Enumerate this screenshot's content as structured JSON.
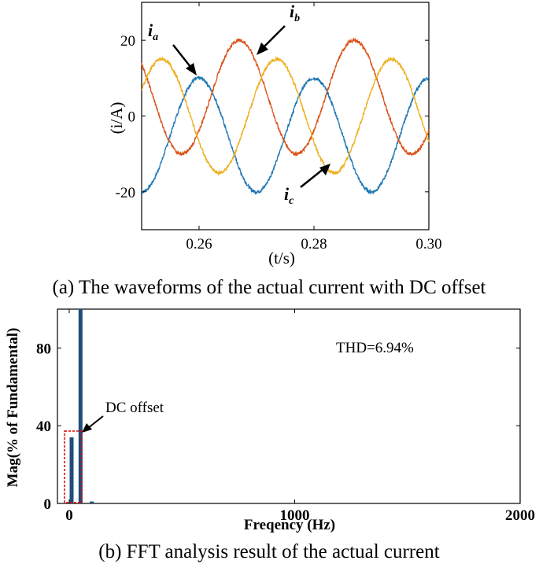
{
  "chart_data": [
    {
      "type": "line",
      "title": "",
      "caption": "(a) The waveforms of the actual current with DC offset",
      "xlabel": "(t/s)",
      "ylabel": "(i/A)",
      "xlim": [
        0.25,
        0.3
      ],
      "ylim": [
        -30,
        30
      ],
      "xticks": [
        0.26,
        0.28,
        0.3
      ],
      "xtick_labels": [
        "0.26",
        "0.28",
        "0.30"
      ],
      "yticks": [
        -20,
        0,
        20
      ],
      "ytick_labels": [
        "-20",
        "0",
        "20"
      ],
      "frequency_hz": 50,
      "series": [
        {
          "name": "ia",
          "amplitude": 15,
          "dc_offset": -5,
          "peak_time": 0.26,
          "color": "#1f77b4"
        },
        {
          "name": "ib",
          "amplitude": 15,
          "dc_offset": 5,
          "peak_time": 0.267,
          "color": "#d95319"
        },
        {
          "name": "ic",
          "amplitude": 15,
          "dc_offset": 0,
          "peak_time": 0.2535,
          "color": "#edb120"
        }
      ],
      "annotations": [
        {
          "label": "i",
          "sub": "a",
          "target": [
            0.2595,
            10.5
          ]
        },
        {
          "label": "i",
          "sub": "b",
          "target": [
            0.2715,
            16
          ]
        },
        {
          "label": "i",
          "sub": "c",
          "target": [
            0.2835,
            -14
          ]
        }
      ]
    },
    {
      "type": "bar",
      "caption": "(b) FFT analysis result of the actual current",
      "title": "",
      "xlabel": "Freqency (Hz)",
      "ylabel": "Mag(% of Fundamental)",
      "xlim": [
        -50,
        2000
      ],
      "ylim": [
        0,
        100
      ],
      "xticks": [
        0,
        1000,
        2000
      ],
      "xtick_labels": [
        "0",
        "1000",
        "2000"
      ],
      "yticks": [
        0,
        40,
        80
      ],
      "ytick_labels": [
        "0",
        "40",
        "80"
      ],
      "x": [
        0,
        50,
        100
      ],
      "values": [
        34,
        100,
        1
      ],
      "bar_color": "#1f4e79",
      "annotations": [
        {
          "text": "THD=6.94%",
          "x": 1000,
          "y": 80
        },
        {
          "text": "DC offset",
          "target_x": 0,
          "target_y": 37
        }
      ]
    }
  ]
}
